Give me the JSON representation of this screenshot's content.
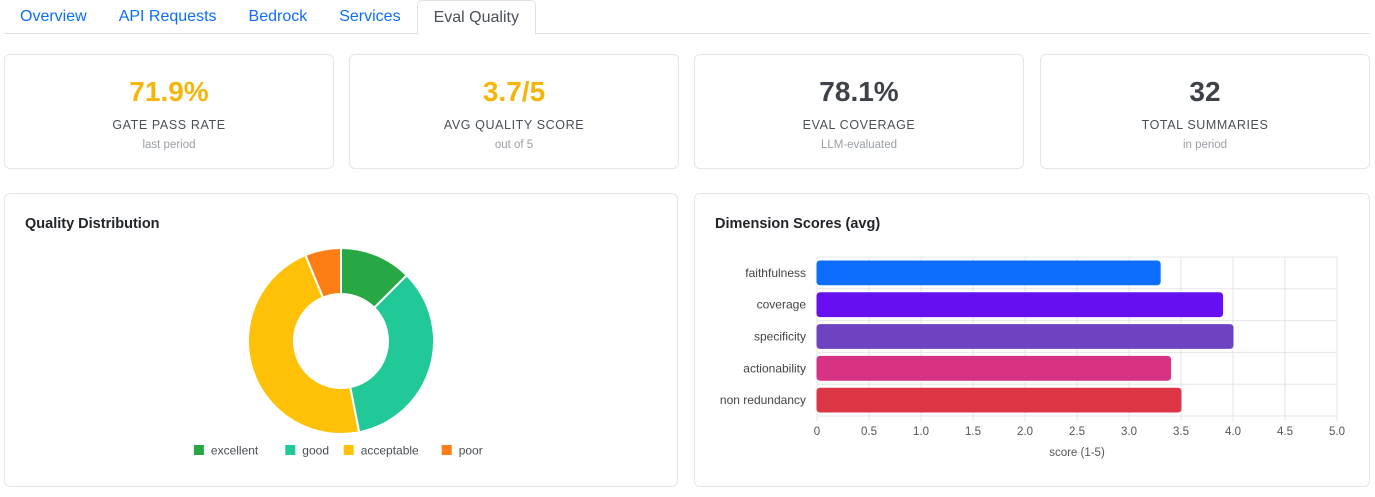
{
  "tabs": [
    {
      "label": "Overview",
      "active": false
    },
    {
      "label": "API Requests",
      "active": false
    },
    {
      "label": "Bedrock",
      "active": false
    },
    {
      "label": "Services",
      "active": false
    },
    {
      "label": "Eval Quality",
      "active": true
    }
  ],
  "kpis": [
    {
      "value": "71.9%",
      "label": "GATE PASS RATE",
      "sub": "last period",
      "color": "#f5b50a"
    },
    {
      "value": "3.7/5",
      "label": "AVG QUALITY SCORE",
      "sub": "out of 5",
      "color": "#f5b50a"
    },
    {
      "value": "78.1%",
      "label": "EVAL COVERAGE",
      "sub": "LLM-evaluated",
      "color": "#3d4349"
    },
    {
      "value": "32",
      "label": "TOTAL SUMMARIES",
      "sub": "in period",
      "color": "#3d4349"
    }
  ],
  "quality_panel": {
    "title": "Quality Distribution"
  },
  "dimension_panel": {
    "title": "Dimension Scores (avg)"
  },
  "chart_data": [
    {
      "type": "pie",
      "variant": "doughnut",
      "title": "Quality Distribution",
      "categories": [
        "excellent",
        "good",
        "acceptable",
        "poor"
      ],
      "values": [
        4,
        11,
        15,
        2
      ],
      "colors": [
        "#28a745",
        "#20c997",
        "#ffc107",
        "#fd7e14"
      ],
      "legend": "bottom"
    },
    {
      "type": "bar",
      "orientation": "horizontal",
      "title": "Dimension Scores (avg)",
      "categories": [
        "faithfulness",
        "coverage",
        "specificity",
        "actionability",
        "non redundancy"
      ],
      "values": [
        3.3,
        3.9,
        4.0,
        3.4,
        3.5
      ],
      "colors": [
        "#0d6efd",
        "#6610f2",
        "#6f42c1",
        "#d63384",
        "#dc3545"
      ],
      "xlabel": "score (1-5)",
      "xlim": [
        0,
        5
      ],
      "xticks": [
        "0",
        "0.5",
        "1.0",
        "1.5",
        "2.0",
        "2.5",
        "3.0",
        "3.5",
        "4.0",
        "4.5",
        "5.0"
      ],
      "grid": true
    }
  ]
}
